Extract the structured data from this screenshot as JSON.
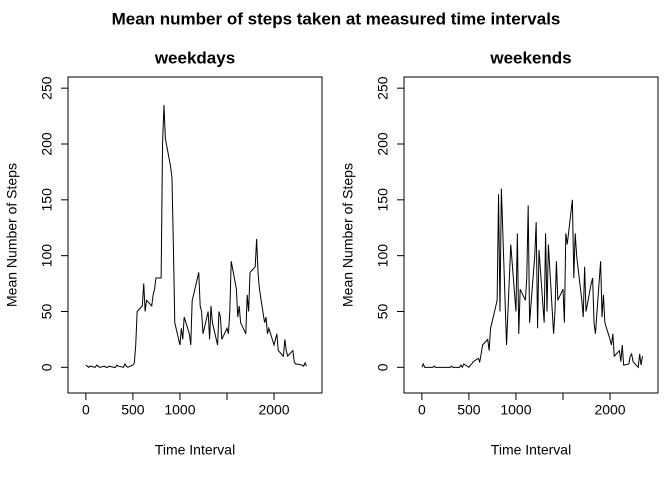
{
  "title": "Mean number of steps taken at measured time intervals",
  "chart_data": [
    {
      "type": "line",
      "title": "weekdays",
      "xlabel": "Time Interval",
      "ylabel": "Mean Number of Steps",
      "x": [
        0,
        15,
        30,
        45,
        100,
        115,
        130,
        145,
        200,
        215,
        230,
        245,
        300,
        315,
        330,
        345,
        400,
        415,
        430,
        445,
        500,
        515,
        530,
        545,
        600,
        615,
        630,
        645,
        700,
        715,
        730,
        745,
        800,
        815,
        830,
        845,
        900,
        915,
        930,
        945,
        1000,
        1015,
        1030,
        1045,
        1100,
        1115,
        1130,
        1145,
        1200,
        1215,
        1230,
        1245,
        1300,
        1315,
        1330,
        1345,
        1400,
        1415,
        1430,
        1445,
        1500,
        1515,
        1530,
        1545,
        1600,
        1615,
        1630,
        1645,
        1700,
        1715,
        1730,
        1745,
        1800,
        1815,
        1830,
        1845,
        1900,
        1915,
        1930,
        1945,
        2000,
        2015,
        2030,
        2045,
        2100,
        2115,
        2130,
        2145,
        2200,
        2215,
        2230,
        2245,
        2300,
        2315,
        2330,
        2345
      ],
      "values": [
        2,
        1,
        0,
        1,
        0,
        2,
        1,
        0,
        1,
        0,
        0,
        1,
        0,
        0,
        2,
        1,
        0,
        3,
        1,
        0,
        2,
        4,
        20,
        50,
        55,
        75,
        50,
        60,
        55,
        65,
        70,
        80,
        80,
        200,
        235,
        205,
        180,
        170,
        110,
        40,
        20,
        35,
        25,
        45,
        30,
        20,
        60,
        65,
        85,
        55,
        50,
        30,
        50,
        25,
        55,
        40,
        20,
        50,
        45,
        25,
        35,
        30,
        50,
        95,
        70,
        45,
        55,
        40,
        30,
        65,
        50,
        85,
        90,
        115,
        85,
        70,
        40,
        45,
        30,
        35,
        20,
        25,
        30,
        15,
        10,
        25,
        15,
        10,
        15,
        5,
        3,
        3,
        2,
        1,
        4,
        1
      ],
      "color": "#000000",
      "xlim": [
        -190,
        2510
      ],
      "ylim": [
        -23,
        260
      ],
      "xticks": [
        0,
        500,
        1000,
        {
          "value": 1500,
          "label": null
        },
        2000
      ],
      "yticks": [
        0,
        50,
        100,
        150,
        200,
        250
      ]
    },
    {
      "type": "line",
      "title": "weekends",
      "xlabel": "Time Interval",
      "ylabel": "Mean Number of Steps",
      "x": [
        0,
        15,
        30,
        45,
        100,
        115,
        130,
        145,
        200,
        215,
        230,
        245,
        300,
        315,
        330,
        345,
        400,
        415,
        430,
        445,
        500,
        515,
        530,
        545,
        600,
        615,
        630,
        645,
        700,
        715,
        730,
        745,
        800,
        815,
        830,
        845,
        900,
        915,
        930,
        945,
        1000,
        1015,
        1030,
        1045,
        1100,
        1115,
        1130,
        1145,
        1200,
        1215,
        1230,
        1245,
        1300,
        1315,
        1330,
        1345,
        1400,
        1415,
        1430,
        1445,
        1500,
        1515,
        1530,
        1545,
        1600,
        1615,
        1630,
        1645,
        1700,
        1715,
        1730,
        1745,
        1800,
        1815,
        1830,
        1845,
        1900,
        1915,
        1930,
        1945,
        2000,
        2015,
        2030,
        2045,
        2100,
        2115,
        2130,
        2145,
        2200,
        2215,
        2230,
        2245,
        2300,
        2315,
        2330,
        2345
      ],
      "values": [
        0,
        3,
        0,
        0,
        0,
        0,
        1,
        0,
        0,
        0,
        0,
        0,
        0,
        1,
        0,
        0,
        0,
        2,
        0,
        3,
        0,
        2,
        3,
        5,
        8,
        5,
        12,
        20,
        25,
        15,
        35,
        40,
        60,
        155,
        50,
        160,
        20,
        50,
        80,
        110,
        50,
        120,
        30,
        70,
        60,
        80,
        145,
        40,
        100,
        130,
        35,
        105,
        40,
        120,
        50,
        110,
        30,
        50,
        95,
        60,
        70,
        40,
        120,
        110,
        150,
        80,
        120,
        100,
        60,
        45,
        90,
        50,
        75,
        80,
        40,
        30,
        95,
        45,
        65,
        40,
        25,
        20,
        30,
        10,
        15,
        5,
        20,
        2,
        3,
        10,
        12,
        5,
        0,
        12,
        2,
        10
      ],
      "color": "#000000",
      "xlim": [
        -190,
        2510
      ],
      "ylim": [
        -23,
        260
      ],
      "xticks": [
        0,
        500,
        1000,
        {
          "value": 1500,
          "label": null
        },
        2000
      ],
      "yticks": [
        0,
        50,
        100,
        150,
        200,
        250
      ]
    }
  ]
}
